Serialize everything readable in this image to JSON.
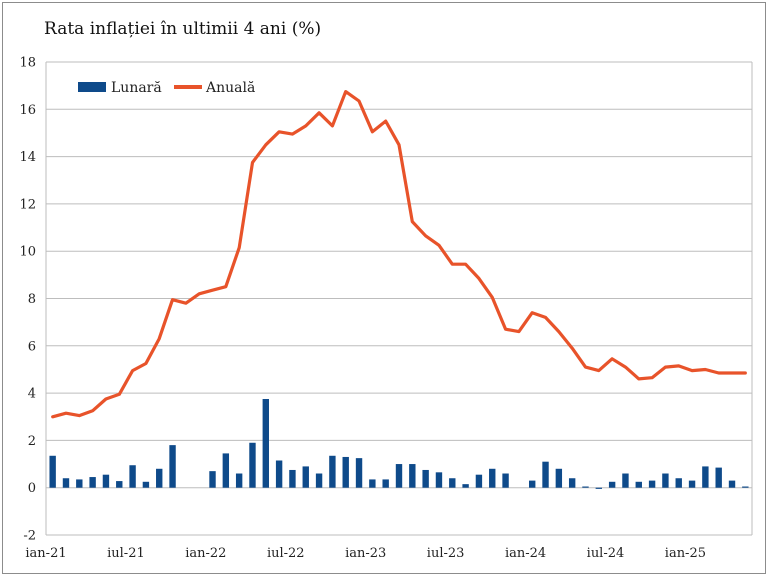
{
  "chart_data": {
    "type": "bar+line",
    "title": "Rata inflației în ultimii 4 ani (%)",
    "ylim": [
      -2,
      18
    ],
    "yticks": [
      -2,
      0,
      2,
      4,
      6,
      8,
      10,
      12,
      14,
      16,
      18
    ],
    "xtick_labels": [
      "ian-21",
      "iul-21",
      "ian-22",
      "iul-22",
      "ian-23",
      "iul-23",
      "ian-24",
      "iul-24",
      "ian-25"
    ],
    "grid": "horizontal",
    "legend_position": "top-left",
    "months": [
      "ian-21",
      "feb-21",
      "mar-21",
      "apr-21",
      "mai-21",
      "iun-21",
      "iul-21",
      "aug-21",
      "sep-21",
      "oct-21",
      "nov-21",
      "dec-21",
      "ian-22",
      "feb-22",
      "mar-22",
      "apr-22",
      "mai-22",
      "iun-22",
      "iul-22",
      "aug-22",
      "sep-22",
      "oct-22",
      "nov-22",
      "dec-22",
      "ian-23",
      "feb-23",
      "mar-23",
      "apr-23",
      "mai-23",
      "iun-23",
      "iul-23",
      "aug-23",
      "sep-23",
      "oct-23",
      "nov-23",
      "dec-23",
      "ian-24",
      "feb-24",
      "mar-24",
      "apr-24",
      "mai-24",
      "iun-24",
      "iul-24",
      "aug-24",
      "sep-24",
      "oct-24",
      "nov-24",
      "dec-24",
      "ian-25",
      "feb-25",
      "mar-25",
      "apr-25",
      "mai-25"
    ],
    "series": [
      {
        "name": "Lunară",
        "kind": "bar",
        "color": "#0e4a8a",
        "values": [
          1.35,
          0.4,
          0.35,
          0.45,
          0.55,
          0.28,
          0.95,
          0.25,
          0.8,
          1.8,
          0.0,
          0.0,
          0.7,
          1.45,
          0.6,
          1.9,
          3.75,
          1.15,
          0.75,
          0.9,
          0.6,
          1.35,
          1.3,
          1.25,
          0.35,
          0.35,
          1.0,
          1.0,
          0.75,
          0.65,
          0.4,
          0.15,
          0.55,
          0.8,
          0.6,
          0.0,
          0.3,
          1.1,
          0.8,
          0.4,
          0.05,
          -0.05,
          0.25,
          0.6,
          0.25,
          0.3,
          0.6,
          0.4,
          0.3,
          0.9,
          0.85,
          0.3,
          0.05
        ]
      },
      {
        "name": "Anuală",
        "kind": "line",
        "color": "#e8532a",
        "values": [
          3.0,
          3.15,
          3.05,
          3.25,
          3.75,
          3.95,
          4.95,
          5.25,
          6.3,
          7.95,
          7.8,
          8.2,
          8.35,
          8.5,
          10.15,
          13.75,
          14.5,
          15.05,
          14.95,
          15.3,
          15.85,
          15.3,
          16.75,
          16.35,
          15.05,
          15.5,
          14.5,
          11.25,
          10.65,
          10.25,
          9.45,
          9.45,
          8.85,
          8.05,
          6.7,
          6.6,
          7.4,
          7.2,
          6.6,
          5.9,
          5.1,
          4.95,
          5.45,
          5.1,
          4.6,
          4.65,
          5.1,
          5.15,
          4.95,
          5.0,
          4.85,
          4.85,
          4.85
        ]
      }
    ]
  }
}
